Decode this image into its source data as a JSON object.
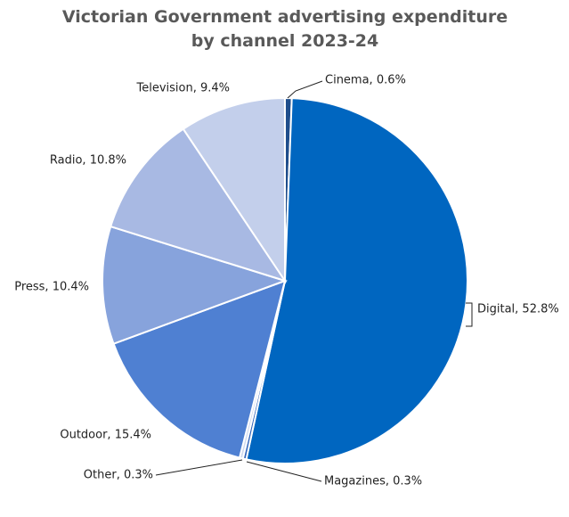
{
  "chart_data": {
    "type": "pie",
    "title": "Victorian Government advertising expenditure by channel 2023-24",
    "values": [
      0.6,
      52.8,
      0.3,
      0.3,
      15.4,
      10.4,
      10.8,
      9.4
    ],
    "value_labels": [
      "Cinema, 0.6%",
      "Digital, 52.8%",
      "Magazines, 0.3%",
      "Other, 0.3%",
      "Outdoor, 15.4%",
      "Press, 10.4%",
      "Radio, 10.8%",
      "Television, 9.4%"
    ],
    "colors": [
      "#1f4e8c",
      "#0066c0",
      "#3366bb",
      "#d0d9ee",
      "#4f80d2",
      "#87a3dc",
      "#a8b9e3",
      "#c3cfeb"
    ]
  }
}
